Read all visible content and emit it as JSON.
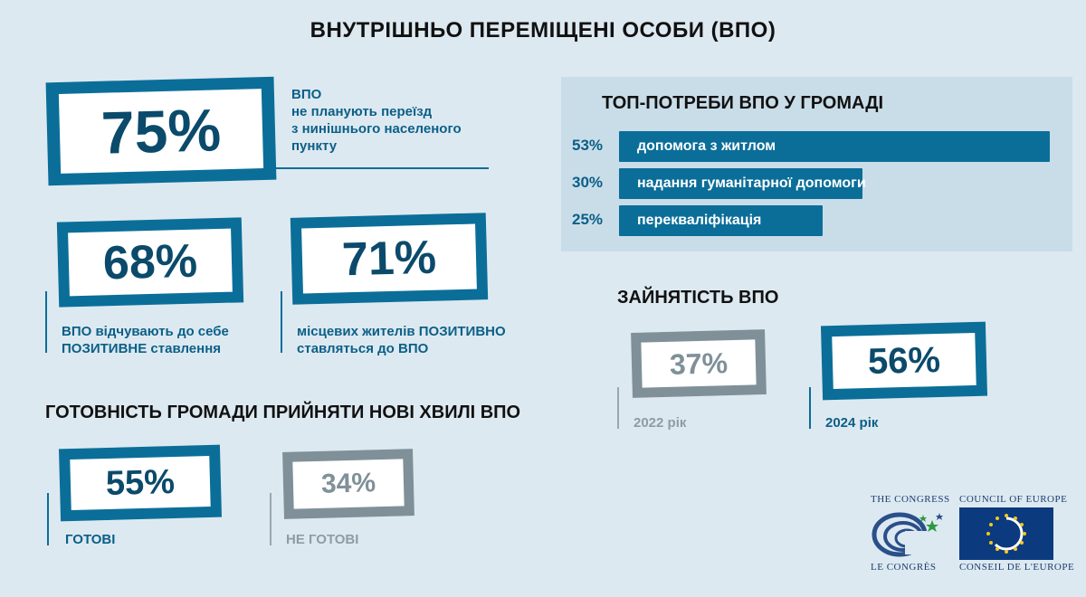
{
  "title": "ВНУТРІШНЬО ПЕРЕМІЩЕНІ ОСОБИ (ВПО)",
  "stats": {
    "not_moving": {
      "value": "75%",
      "caption": [
        "ВПО",
        "не планують переїзд",
        "з нинішнього населеного",
        "пункту"
      ]
    },
    "positive_feel": {
      "value": "68%",
      "caption": [
        "ВПО відчувають до себе",
        "ПОЗИТИВНЕ ставлення"
      ]
    },
    "positive_locals": {
      "value": "71%",
      "caption": [
        "місцевих жителів ПОЗИТИВНО",
        "ставляться до ВПО"
      ]
    }
  },
  "readiness": {
    "heading": "ГОТОВНІСТЬ ГРОМАДИ ПРИЙНЯТИ НОВІ ХВИЛІ ВПО",
    "ready": {
      "value": "55%",
      "label": "ГОТОВІ"
    },
    "not_ready": {
      "value": "34%",
      "label": "НЕ ГОТОВІ"
    }
  },
  "needs": {
    "heading": "ТОП-ПОТРЕБИ ВПО У ГРОМАДІ",
    "items": [
      {
        "pct": "53%",
        "label": "допомога з житлом",
        "value": 53
      },
      {
        "pct": "30%",
        "label": "надання гуманітарної допомоги",
        "value": 30
      },
      {
        "pct": "25%",
        "label": "перекваліфікація",
        "value": 25
      }
    ]
  },
  "employment": {
    "heading": "ЗАЙНЯТІСТЬ ВПО",
    "y2022": {
      "value": "37%",
      "label": "2022 рік"
    },
    "y2024": {
      "value": "56%",
      "label": "2024 рік"
    }
  },
  "logos": {
    "congress_top": "THE CONGRESS",
    "congress_bottom": "LE CONGRÈS",
    "coe_top": "COUNCIL OF EUROPE",
    "coe_bottom": "CONSEIL DE L'EUROPE"
  },
  "colors": {
    "accent": "#0b6e99",
    "muted": "#7f9099",
    "background": "#dde9f1",
    "panel": "#c9dde9"
  }
}
